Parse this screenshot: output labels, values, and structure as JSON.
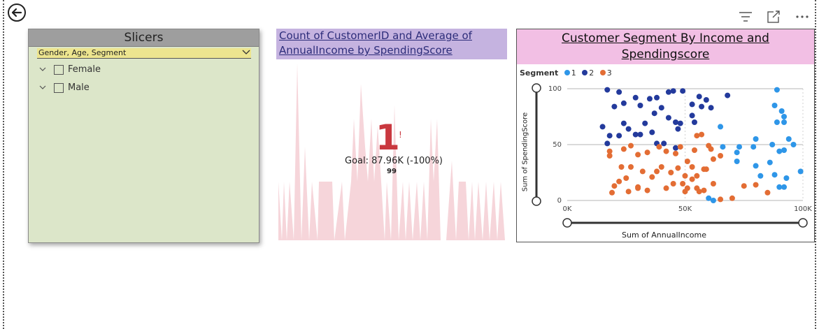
{
  "slicers": {
    "title": "Slicers",
    "dropdown_label": "Gender, Age, Segment",
    "items": [
      {
        "label": "Female"
      },
      {
        "label": "Male"
      }
    ]
  },
  "kpi": {
    "title": "Count of CustomerID and Average of AnnualIncome by SpendingScore",
    "value": "1",
    "alert": "!",
    "goal": "Goal: 87.96K (-100%)",
    "sub_value": "99"
  },
  "scatter": {
    "title": "Customer Segment By Income and Spendingscore",
    "legend_title": "Segment",
    "legend_items": [
      {
        "label": "1",
        "color": "#2e96e8"
      },
      {
        "label": "2",
        "color": "#233a9c"
      },
      {
        "label": "3",
        "color": "#e36d34"
      }
    ],
    "xlabel": "Sum of AnnualIncome",
    "ylabel": "Sum of SpendingScore"
  },
  "chart_data": [
    {
      "type": "scatter",
      "title": "Customer Segment By Income and Spendingscore",
      "xlabel": "Sum of AnnualIncome",
      "ylabel": "Sum of SpendingScore",
      "xlim": [
        0,
        100000
      ],
      "ylim": [
        0,
        100
      ],
      "x_ticks": [
        "0K",
        "50K",
        "100K"
      ],
      "y_ticks": [
        "0",
        "50",
        "100"
      ],
      "legend_title": "Segment",
      "series": [
        {
          "name": "1",
          "color": "#2e96e8",
          "points": [
            [
              89000,
              99
            ],
            [
              88000,
              85
            ],
            [
              91000,
              80
            ],
            [
              92000,
              75
            ],
            [
              89000,
              70
            ],
            [
              92000,
              70
            ],
            [
              65000,
              66
            ],
            [
              80000,
              55
            ],
            [
              87000,
              50
            ],
            [
              90000,
              44
            ],
            [
              92000,
              45
            ],
            [
              94000,
              55
            ],
            [
              96000,
              50
            ],
            [
              79000,
              48
            ],
            [
              73000,
              48
            ],
            [
              66000,
              48
            ],
            [
              72000,
              43
            ],
            [
              72000,
              35
            ],
            [
              80000,
              31
            ],
            [
              82000,
              22
            ],
            [
              86000,
              34
            ],
            [
              88000,
              23
            ],
            [
              90000,
              12
            ],
            [
              92000,
              12
            ],
            [
              93000,
              20
            ],
            [
              99000,
              26
            ],
            [
              60000,
              2
            ],
            [
              62000,
              0
            ]
          ]
        },
        {
          "name": "2",
          "color": "#233a9c",
          "points": [
            [
              17000,
              99
            ],
            [
              22000,
              97
            ],
            [
              29000,
              92
            ],
            [
              38000,
              92
            ],
            [
              43000,
              97
            ],
            [
              45000,
              98
            ],
            [
              49000,
              98
            ],
            [
              53000,
              86
            ],
            [
              56000,
              93
            ],
            [
              59000,
              90
            ],
            [
              68000,
              94
            ],
            [
              20000,
              84
            ],
            [
              24000,
              87
            ],
            [
              31000,
              85
            ],
            [
              35000,
              91
            ],
            [
              40000,
              83
            ],
            [
              37000,
              78
            ],
            [
              46000,
              70
            ],
            [
              48000,
              69
            ],
            [
              53000,
              76
            ],
            [
              57000,
              84
            ],
            [
              61000,
              83
            ],
            [
              15000,
              66
            ],
            [
              18000,
              58
            ],
            [
              24000,
              69
            ],
            [
              26000,
              64
            ],
            [
              33000,
              69
            ],
            [
              36000,
              61
            ],
            [
              38000,
              51
            ],
            [
              41000,
              51
            ],
            [
              43000,
              74
            ],
            [
              47000,
              64
            ],
            [
              54000,
              70
            ],
            [
              22000,
              58
            ],
            [
              29000,
              59
            ],
            [
              31000,
              59
            ],
            [
              17000,
              51
            ],
            [
              46000,
              47
            ]
          ]
        },
        {
          "name": "3",
          "color": "#e36d34",
          "points": [
            [
              18000,
              44
            ],
            [
              18000,
              40
            ],
            [
              24000,
              46
            ],
            [
              27000,
              49
            ],
            [
              30000,
              41
            ],
            [
              34000,
              43
            ],
            [
              39000,
              48
            ],
            [
              40000,
              30
            ],
            [
              42000,
              44
            ],
            [
              46000,
              42
            ],
            [
              48000,
              48
            ],
            [
              51000,
              35
            ],
            [
              54000,
              45
            ],
            [
              55000,
              58
            ],
            [
              57000,
              59
            ],
            [
              60000,
              49
            ],
            [
              61000,
              46
            ],
            [
              62000,
              37
            ],
            [
              65000,
              40
            ],
            [
              23000,
              30
            ],
            [
              27000,
              30
            ],
            [
              32000,
              26
            ],
            [
              36000,
              21
            ],
            [
              38000,
              26
            ],
            [
              44000,
              25
            ],
            [
              47000,
              29
            ],
            [
              50000,
              22
            ],
            [
              53000,
              30
            ],
            [
              55000,
              22
            ],
            [
              58000,
              28
            ],
            [
              59000,
              28
            ],
            [
              22000,
              17
            ],
            [
              25000,
              20
            ],
            [
              30000,
              12
            ],
            [
              34000,
              9
            ],
            [
              42000,
              11
            ],
            [
              49000,
              15
            ],
            [
              51000,
              11
            ],
            [
              53000,
              19
            ],
            [
              55000,
              11
            ],
            [
              58000,
              9
            ],
            [
              62000,
              15
            ],
            [
              19000,
              7
            ],
            [
              20000,
              13
            ],
            [
              26000,
              8
            ],
            [
              30000,
              11
            ],
            [
              45000,
              15
            ],
            [
              50000,
              8
            ],
            [
              56000,
              8
            ],
            [
              65000,
              1
            ],
            [
              70000,
              2
            ],
            [
              75000,
              13
            ],
            [
              80000,
              14
            ],
            [
              85000,
              7
            ]
          ]
        }
      ]
    },
    {
      "type": "area",
      "title": "Count of CustomerID and Average of AnnualIncome by SpendingScore",
      "kpi_value": "1",
      "goal": "Goal: 87.96K (-100%)"
    }
  ]
}
